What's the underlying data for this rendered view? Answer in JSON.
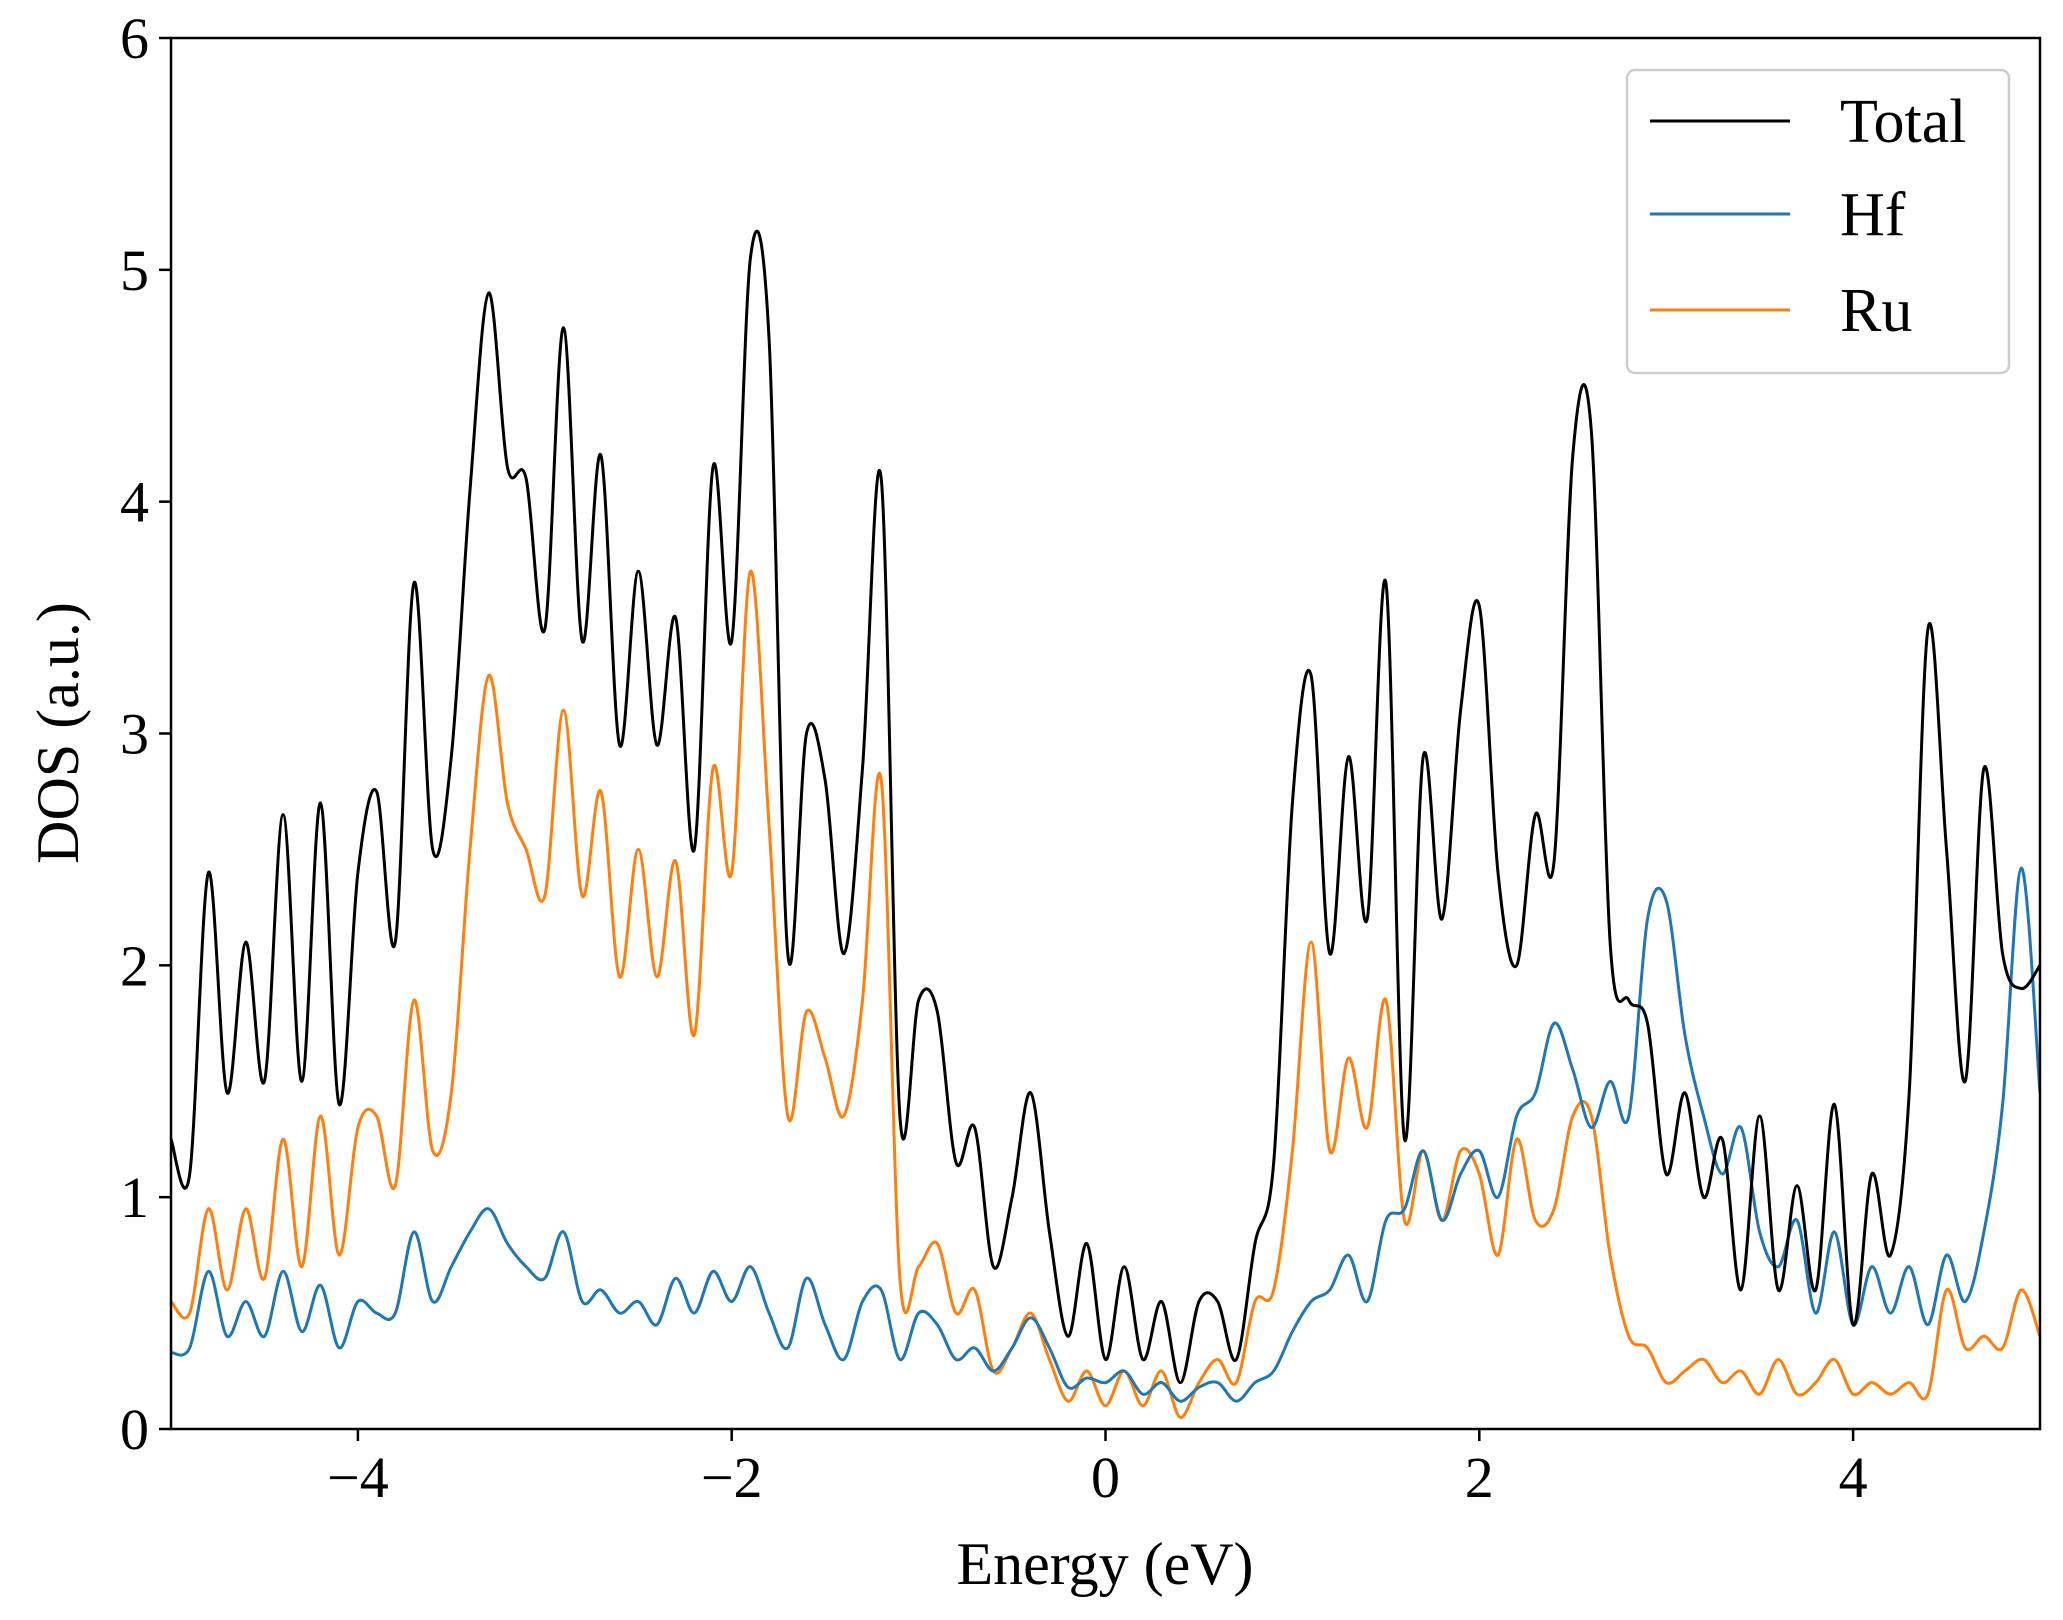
{
  "chart_data": {
    "type": "line",
    "title": "",
    "xlabel": "Energy (eV)",
    "ylabel": "DOS (a.u.)",
    "xlim": [
      -5,
      5
    ],
    "ylim": [
      0,
      6
    ],
    "xticks": [
      -4,
      -2,
      0,
      2,
      4
    ],
    "xtick_labels": [
      "−4",
      "−2",
      "0",
      "2",
      "4"
    ],
    "yticks": [
      0,
      1,
      2,
      3,
      4,
      5,
      6
    ],
    "ytick_labels": [
      "0",
      "1",
      "2",
      "3",
      "4",
      "5",
      "6"
    ],
    "grid": false,
    "legend_position": "top-right",
    "series": [
      {
        "name": "Total",
        "color": "#000000",
        "x": [
          -5.0,
          -4.9,
          -4.8,
          -4.7,
          -4.6,
          -4.5,
          -4.4,
          -4.3,
          -4.2,
          -4.1,
          -4.0,
          -3.9,
          -3.8,
          -3.7,
          -3.6,
          -3.5,
          -3.4,
          -3.3,
          -3.2,
          -3.1,
          -3.0,
          -2.9,
          -2.8,
          -2.7,
          -2.6,
          -2.5,
          -2.4,
          -2.3,
          -2.2,
          -2.1,
          -2.0,
          -1.9,
          -1.8,
          -1.7,
          -1.6,
          -1.5,
          -1.4,
          -1.3,
          -1.2,
          -1.1,
          -1.0,
          -0.9,
          -0.8,
          -0.7,
          -0.6,
          -0.5,
          -0.4,
          -0.3,
          -0.2,
          -0.1,
          0.0,
          0.1,
          0.2,
          0.3,
          0.4,
          0.5,
          0.6,
          0.7,
          0.8,
          0.9,
          1.0,
          1.1,
          1.2,
          1.3,
          1.4,
          1.5,
          1.6,
          1.7,
          1.8,
          1.9,
          2.0,
          2.1,
          2.2,
          2.3,
          2.4,
          2.5,
          2.6,
          2.7,
          2.8,
          2.9,
          3.0,
          3.1,
          3.2,
          3.3,
          3.4,
          3.5,
          3.6,
          3.7,
          3.8,
          3.9,
          4.0,
          4.1,
          4.2,
          4.3,
          4.4,
          4.5,
          4.6,
          4.7,
          4.8,
          4.9,
          5.0
        ],
        "y": [
          1.25,
          1.1,
          2.4,
          1.45,
          2.1,
          1.5,
          2.65,
          1.5,
          2.7,
          1.4,
          2.4,
          2.75,
          2.1,
          3.65,
          2.5,
          2.9,
          4.05,
          4.9,
          4.15,
          4.1,
          3.45,
          4.75,
          3.4,
          4.2,
          2.95,
          3.7,
          2.95,
          3.5,
          2.5,
          4.15,
          3.4,
          5.05,
          4.7,
          2.05,
          3.0,
          2.8,
          2.05,
          2.85,
          4.1,
          1.35,
          1.85,
          1.8,
          1.15,
          1.3,
          0.7,
          1.0,
          1.45,
          0.85,
          0.4,
          0.8,
          0.3,
          0.7,
          0.3,
          0.55,
          0.2,
          0.55,
          0.55,
          0.3,
          0.8,
          1.15,
          2.7,
          3.25,
          2.05,
          2.9,
          2.2,
          3.65,
          1.25,
          2.9,
          2.2,
          3.1,
          3.55,
          2.4,
          2.0,
          2.65,
          2.45,
          4.2,
          4.3,
          2.1,
          1.85,
          1.75,
          1.1,
          1.45,
          1.0,
          1.25,
          0.6,
          1.35,
          0.6,
          1.05,
          0.6,
          1.4,
          0.45,
          1.1,
          0.75,
          1.45,
          3.45,
          2.5,
          1.5,
          2.85,
          2.05,
          1.9,
          2.0
        ],
        "note": ""
      },
      {
        "name": "Hf",
        "color": "#1f77b4",
        "x": [
          -5.0,
          -4.9,
          -4.8,
          -4.7,
          -4.6,
          -4.5,
          -4.4,
          -4.3,
          -4.2,
          -4.1,
          -4.0,
          -3.9,
          -3.8,
          -3.7,
          -3.6,
          -3.5,
          -3.4,
          -3.3,
          -3.2,
          -3.1,
          -3.0,
          -2.9,
          -2.8,
          -2.7,
          -2.6,
          -2.5,
          -2.4,
          -2.3,
          -2.2,
          -2.1,
          -2.0,
          -1.9,
          -1.8,
          -1.7,
          -1.6,
          -1.5,
          -1.4,
          -1.3,
          -1.2,
          -1.1,
          -1.0,
          -0.9,
          -0.8,
          -0.7,
          -0.6,
          -0.5,
          -0.4,
          -0.3,
          -0.2,
          -0.1,
          0.0,
          0.1,
          0.2,
          0.3,
          0.4,
          0.5,
          0.6,
          0.7,
          0.8,
          0.9,
          1.0,
          1.1,
          1.2,
          1.3,
          1.4,
          1.5,
          1.6,
          1.7,
          1.8,
          1.9,
          2.0,
          2.1,
          2.2,
          2.3,
          2.4,
          2.5,
          2.6,
          2.7,
          2.8,
          2.9,
          3.0,
          3.1,
          3.2,
          3.3,
          3.4,
          3.5,
          3.6,
          3.7,
          3.8,
          3.9,
          4.0,
          4.1,
          4.2,
          4.3,
          4.4,
          4.5,
          4.6,
          4.7,
          4.8,
          4.9,
          5.0
        ],
        "y": [
          0.33,
          0.35,
          0.68,
          0.4,
          0.55,
          0.4,
          0.68,
          0.42,
          0.62,
          0.35,
          0.55,
          0.5,
          0.5,
          0.85,
          0.55,
          0.7,
          0.85,
          0.95,
          0.8,
          0.7,
          0.65,
          0.85,
          0.55,
          0.6,
          0.5,
          0.55,
          0.45,
          0.65,
          0.5,
          0.68,
          0.55,
          0.7,
          0.5,
          0.35,
          0.65,
          0.45,
          0.3,
          0.55,
          0.6,
          0.3,
          0.5,
          0.45,
          0.3,
          0.35,
          0.25,
          0.35,
          0.48,
          0.35,
          0.18,
          0.22,
          0.2,
          0.25,
          0.15,
          0.2,
          0.12,
          0.18,
          0.2,
          0.12,
          0.2,
          0.25,
          0.42,
          0.55,
          0.6,
          0.75,
          0.55,
          0.9,
          0.95,
          1.2,
          0.9,
          1.1,
          1.2,
          1.0,
          1.35,
          1.45,
          1.75,
          1.55,
          1.3,
          1.5,
          1.35,
          2.2,
          2.28,
          1.7,
          1.35,
          1.1,
          1.3,
          0.85,
          0.7,
          0.9,
          0.5,
          0.85,
          0.45,
          0.7,
          0.5,
          0.7,
          0.45,
          0.75,
          0.55,
          0.85,
          1.4,
          2.42,
          1.45
        ],
        "note": ""
      },
      {
        "name": "Ru",
        "color": "#ff7f0e",
        "x": [
          -5.0,
          -4.9,
          -4.8,
          -4.7,
          -4.6,
          -4.5,
          -4.4,
          -4.3,
          -4.2,
          -4.1,
          -4.0,
          -3.9,
          -3.8,
          -3.7,
          -3.6,
          -3.5,
          -3.4,
          -3.3,
          -3.2,
          -3.1,
          -3.0,
          -2.9,
          -2.8,
          -2.7,
          -2.6,
          -2.5,
          -2.4,
          -2.3,
          -2.2,
          -2.1,
          -2.0,
          -1.9,
          -1.8,
          -1.7,
          -1.6,
          -1.5,
          -1.4,
          -1.3,
          -1.2,
          -1.1,
          -1.0,
          -0.9,
          -0.8,
          -0.7,
          -0.6,
          -0.5,
          -0.4,
          -0.3,
          -0.2,
          -0.1,
          0.0,
          0.1,
          0.2,
          0.3,
          0.4,
          0.5,
          0.6,
          0.7,
          0.8,
          0.9,
          1.0,
          1.1,
          1.2,
          1.3,
          1.4,
          1.5,
          1.6,
          1.7,
          1.8,
          1.9,
          2.0,
          2.1,
          2.2,
          2.3,
          2.4,
          2.5,
          2.6,
          2.7,
          2.8,
          2.9,
          3.0,
          3.1,
          3.2,
          3.3,
          3.4,
          3.5,
          3.6,
          3.7,
          3.8,
          3.9,
          4.0,
          4.1,
          4.2,
          4.3,
          4.4,
          4.5,
          4.6,
          4.7,
          4.8,
          4.9,
          5.0
        ],
        "y": [
          0.55,
          0.5,
          0.95,
          0.6,
          0.95,
          0.65,
          1.25,
          0.7,
          1.35,
          0.75,
          1.3,
          1.35,
          1.05,
          1.85,
          1.2,
          1.45,
          2.5,
          3.25,
          2.7,
          2.5,
          2.3,
          3.1,
          2.3,
          2.75,
          1.95,
          2.5,
          1.95,
          2.45,
          1.7,
          2.85,
          2.4,
          3.7,
          2.6,
          1.35,
          1.8,
          1.6,
          1.35,
          1.85,
          2.8,
          0.65,
          0.7,
          0.8,
          0.5,
          0.6,
          0.25,
          0.35,
          0.5,
          0.3,
          0.12,
          0.25,
          0.1,
          0.25,
          0.1,
          0.25,
          0.05,
          0.2,
          0.3,
          0.2,
          0.55,
          0.6,
          1.2,
          2.1,
          1.2,
          1.6,
          1.3,
          1.85,
          0.9,
          1.2,
          0.9,
          1.2,
          1.1,
          0.75,
          1.25,
          0.9,
          0.95,
          1.35,
          1.35,
          0.75,
          0.4,
          0.35,
          0.2,
          0.25,
          0.3,
          0.2,
          0.25,
          0.15,
          0.3,
          0.15,
          0.2,
          0.3,
          0.15,
          0.2,
          0.15,
          0.2,
          0.15,
          0.6,
          0.35,
          0.4,
          0.35,
          0.6,
          0.4
        ],
        "note": ""
      }
    ]
  }
}
